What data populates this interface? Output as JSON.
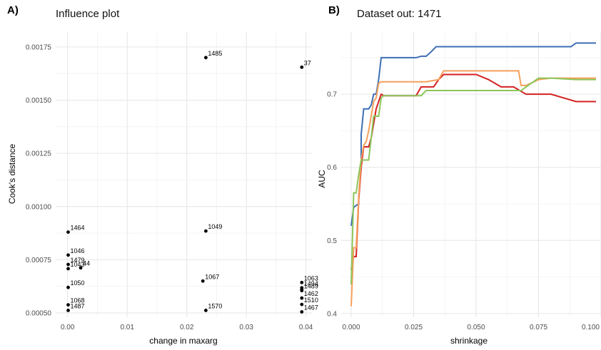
{
  "chart_data": [
    {
      "panel": "A)",
      "type": "scatter",
      "title": "Influence plot",
      "xlabel": "change in maxarg",
      "ylabel": "Cook's distance",
      "xlim": [
        -0.002,
        0.041
      ],
      "ylim": [
        0.00048,
        0.00182
      ],
      "xticks": [
        0.0,
        0.01,
        0.02,
        0.03,
        0.04
      ],
      "xtick_labels": [
        "0.00",
        "0.01",
        "0.02",
        "0.03",
        "0.04"
      ],
      "yticks": [
        0.0005,
        0.00075,
        0.001,
        0.00125,
        0.0015,
        0.00175
      ],
      "ytick_labels": [
        "0.00050",
        "0.00075",
        "0.00100",
        "0.00125",
        "0.00150",
        "0.00175"
      ],
      "grid": true,
      "points": [
        {
          "x": 0.0232,
          "y": 0.0017,
          "label": "1485"
        },
        {
          "x": 0.0393,
          "y": 0.001655,
          "label": "37"
        },
        {
          "x": 0.0001,
          "y": 0.00088,
          "label": "1464"
        },
        {
          "x": 0.0232,
          "y": 0.000885,
          "label": "1049"
        },
        {
          "x": 0.0001,
          "y": 0.000772,
          "label": "1046"
        },
        {
          "x": 0.0001,
          "y": 0.000728,
          "label": "1479"
        },
        {
          "x": 0.0001,
          "y": 0.000708,
          "label": "1043"
        },
        {
          "x": 0.0022,
          "y": 0.000712,
          "label": "44"
        },
        {
          "x": 0.0001,
          "y": 0.00062,
          "label": "1050"
        },
        {
          "x": 0.0227,
          "y": 0.00065,
          "label": "1067"
        },
        {
          "x": 0.0393,
          "y": 0.000643,
          "label": "1063"
        },
        {
          "x": 0.0393,
          "y": 0.000618,
          "label": "1494"
        },
        {
          "x": 0.0393,
          "y": 0.000605,
          "label": "1489"
        },
        {
          "x": 0.0393,
          "y": 0.00061,
          "label": ""
        },
        {
          "x": 0.0393,
          "y": 0.00057,
          "label": "1462"
        },
        {
          "x": 0.0393,
          "y": 0.00054,
          "label": "1510"
        },
        {
          "x": 0.0393,
          "y": 0.000505,
          "label": "1467"
        },
        {
          "x": 0.0001,
          "y": 0.000538,
          "label": "1068"
        },
        {
          "x": 0.0001,
          "y": 0.000512,
          "label": "1487"
        },
        {
          "x": 0.0232,
          "y": 0.000512,
          "label": "1570"
        }
      ]
    },
    {
      "panel": "B)",
      "type": "line",
      "title": "Dataset out: 1471",
      "xlabel": "shrinkage",
      "ylabel": "AUC",
      "xlim": [
        -0.004,
        0.1
      ],
      "ylim": [
        0.395,
        0.785
      ],
      "xticks": [
        0.0,
        0.025,
        0.05,
        0.075,
        0.1
      ],
      "xtick_labels": [
        "0.000",
        "0.025",
        "0.050",
        "0.075",
        "0.100"
      ],
      "yticks": [
        0.4,
        0.5,
        0.6,
        0.7
      ],
      "ytick_labels": [
        "0.4",
        "0.5",
        "0.6",
        "0.7"
      ],
      "grid": true,
      "series": [
        {
          "color": "#3d6fb5",
          "x": [
            0.0,
            0.001,
            0.002,
            0.003,
            0.003,
            0.004,
            0.004,
            0.005,
            0.007,
            0.008,
            0.009,
            0.01,
            0.011,
            0.012,
            0.013,
            0.02,
            0.026,
            0.028,
            0.03,
            0.032,
            0.034,
            0.036,
            0.088,
            0.09,
            0.098
          ],
          "y": [
            0.52,
            0.545,
            0.548,
            0.55,
            0.56,
            0.6,
            0.645,
            0.68,
            0.68,
            0.685,
            0.7,
            0.7,
            0.72,
            0.75,
            0.75,
            0.75,
            0.75,
            0.752,
            0.752,
            0.758,
            0.765,
            0.765,
            0.765,
            0.77,
            0.77
          ]
        },
        {
          "color": "#d42020",
          "x": [
            0.0,
            0.001,
            0.002,
            0.003,
            0.004,
            0.005,
            0.007,
            0.008,
            0.009,
            0.01,
            0.011,
            0.012,
            0.013,
            0.015,
            0.02,
            0.026,
            0.028,
            0.03,
            0.033,
            0.035,
            0.037,
            0.04,
            0.045,
            0.05,
            0.055,
            0.06,
            0.065,
            0.07,
            0.075,
            0.08,
            0.085,
            0.09,
            0.098
          ],
          "y": [
            0.46,
            0.478,
            0.478,
            0.555,
            0.6,
            0.628,
            0.628,
            0.64,
            0.66,
            0.68,
            0.69,
            0.7,
            0.698,
            0.698,
            0.698,
            0.698,
            0.71,
            0.71,
            0.71,
            0.72,
            0.727,
            0.727,
            0.727,
            0.727,
            0.72,
            0.71,
            0.71,
            0.7,
            0.7,
            0.7,
            0.695,
            0.69,
            0.69
          ]
        },
        {
          "color": "#f5a05a",
          "x": [
            0.0,
            0.001,
            0.002,
            0.003,
            0.004,
            0.005,
            0.006,
            0.007,
            0.008,
            0.009,
            0.01,
            0.011,
            0.012,
            0.013,
            0.02,
            0.03,
            0.035,
            0.037,
            0.04,
            0.045,
            0.05,
            0.055,
            0.06,
            0.065,
            0.067,
            0.068,
            0.07,
            0.075,
            0.08,
            0.09,
            0.098
          ],
          "y": [
            0.41,
            0.49,
            0.49,
            0.56,
            0.61,
            0.63,
            0.635,
            0.65,
            0.67,
            0.69,
            0.695,
            0.715,
            0.717,
            0.717,
            0.717,
            0.717,
            0.72,
            0.732,
            0.732,
            0.732,
            0.732,
            0.732,
            0.732,
            0.732,
            0.732,
            0.712,
            0.712,
            0.72,
            0.722,
            0.722,
            0.722
          ]
        },
        {
          "color": "#8cc65a",
          "x": [
            0.0,
            0.001,
            0.002,
            0.003,
            0.004,
            0.005,
            0.006,
            0.007,
            0.008,
            0.009,
            0.01,
            0.011,
            0.012,
            0.013,
            0.02,
            0.028,
            0.03,
            0.035,
            0.04,
            0.05,
            0.06,
            0.067,
            0.068,
            0.07,
            0.075,
            0.08,
            0.09,
            0.098
          ],
          "y": [
            0.44,
            0.565,
            0.565,
            0.59,
            0.61,
            0.61,
            0.61,
            0.61,
            0.64,
            0.67,
            0.67,
            0.67,
            0.695,
            0.698,
            0.698,
            0.698,
            0.705,
            0.705,
            0.705,
            0.705,
            0.705,
            0.705,
            0.705,
            0.71,
            0.722,
            0.722,
            0.72,
            0.72
          ]
        }
      ]
    }
  ]
}
